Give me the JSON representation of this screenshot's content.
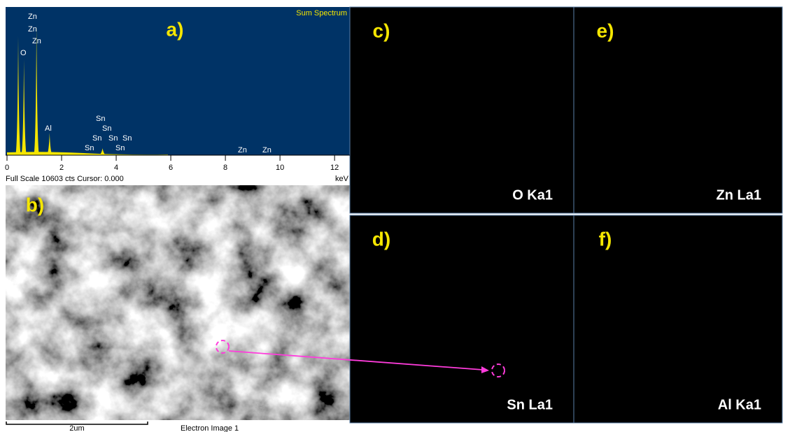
{
  "spectrum": {
    "panel_label": "a)",
    "title": "Sum Spectrum",
    "footer": "Full Scale 10603 cts Cursor: 0.000",
    "x_unit": "keV",
    "xlim": [
      0,
      12.56
    ],
    "xticks": [
      0,
      2,
      4,
      6,
      8,
      10,
      12
    ],
    "ylim": [
      0,
      10603
    ],
    "peaks": {
      "x": [
        0.41,
        0.62,
        1.08,
        1.56,
        3.5
      ],
      "counts": [
        8580,
        6920,
        9440,
        1620,
        500
      ]
    },
    "peak_labels": [
      "Zn",
      "Zn",
      "Zn",
      "O",
      "Al",
      "Sn",
      "Sn",
      "Sn",
      "Sn",
      "Sn",
      "Sn",
      "Sn",
      "Zn",
      "Zn"
    ]
  },
  "sem": {
    "panel_label": "b)",
    "scale_bar": "2um",
    "caption": "Electron Image 1"
  },
  "maps": [
    {
      "panel_label": "c)",
      "element": "O Ka1",
      "color": "#e8e8e8"
    },
    {
      "panel_label": "e)",
      "element": "Zn La1",
      "color": "#c8c040"
    },
    {
      "panel_label": "d)",
      "element": "Sn La1",
      "color": "#6a9a50"
    },
    {
      "panel_label": "f)",
      "element": "Al Ka1",
      "color": "#b040b8"
    }
  ]
}
